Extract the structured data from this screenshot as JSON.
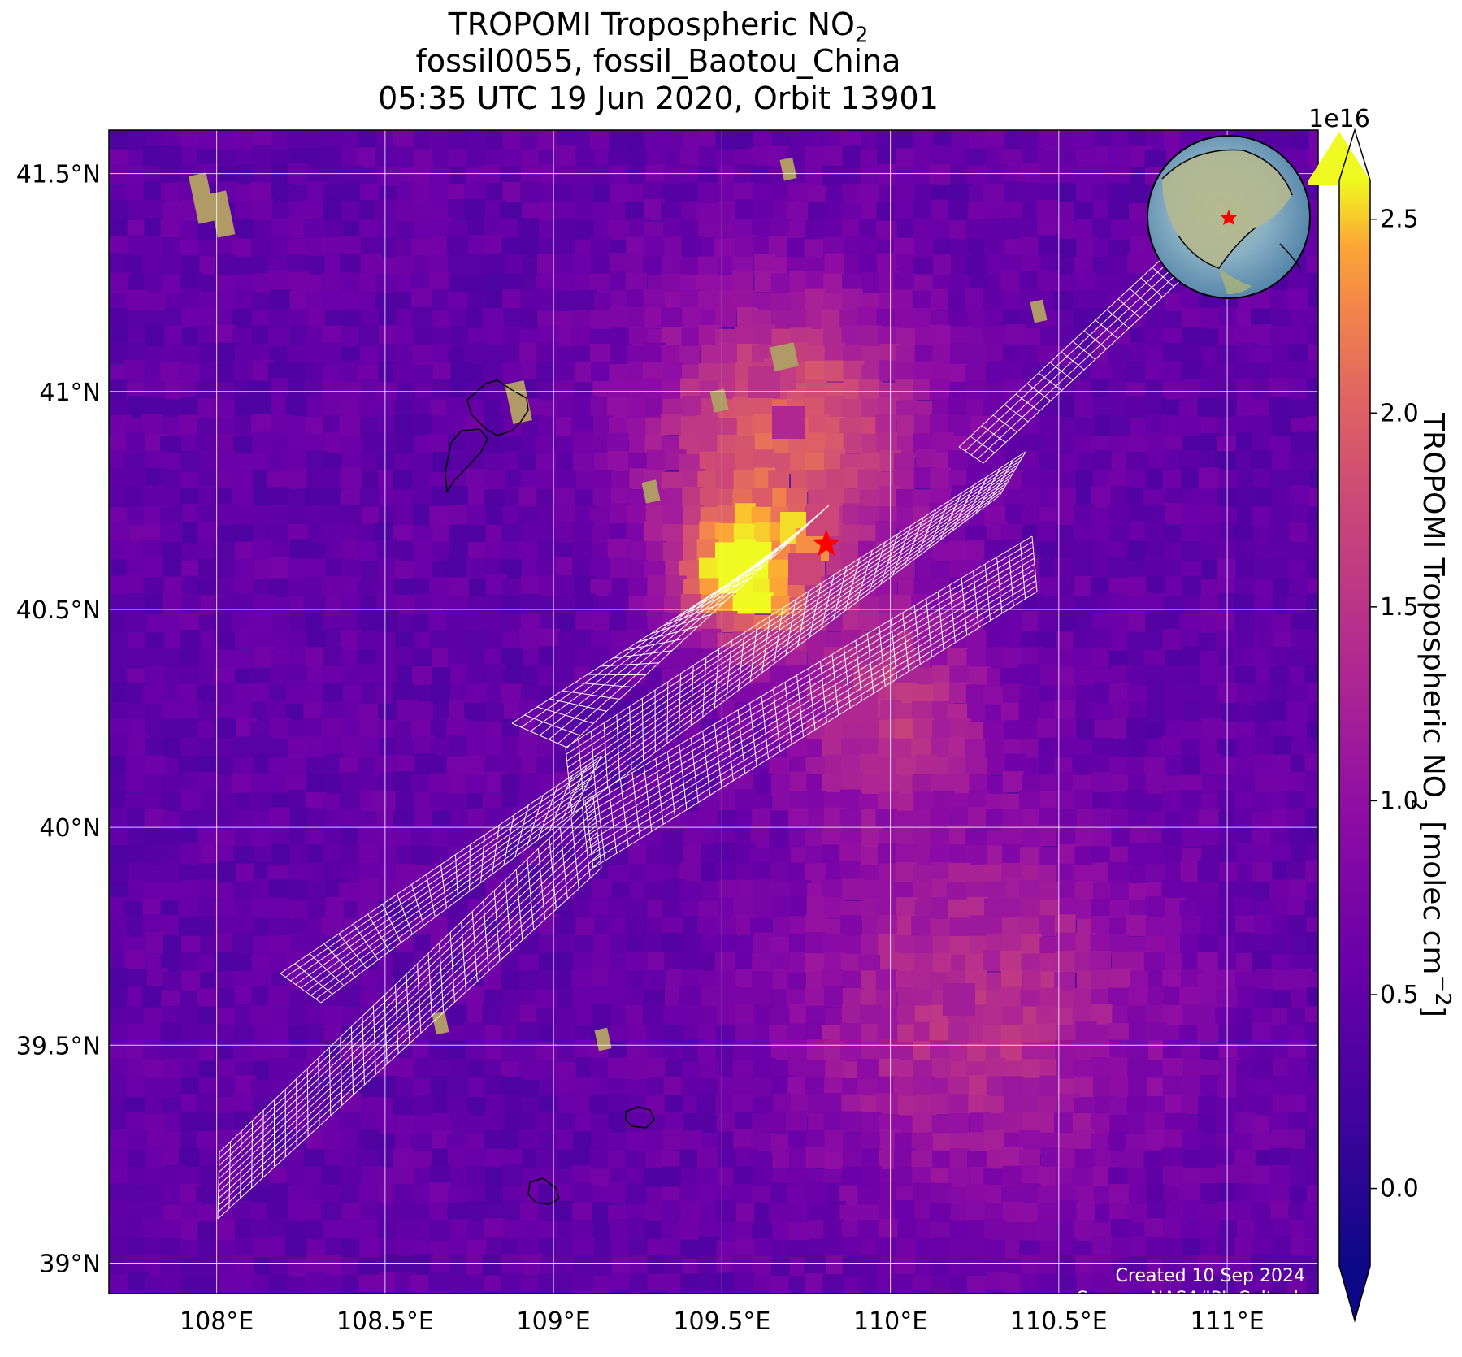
{
  "title": {
    "line1_main": "TROPOMI Tropospheric NO",
    "line1_sub": "2",
    "line2": "fossil0055, fossil_Baotou_China",
    "line3": "05:35 UTC 19 Jun 2020, Orbit 13901"
  },
  "map": {
    "lon_ticks": [
      "108°E",
      "108.5°E",
      "109°E",
      "109.5°E",
      "110°E",
      "110.5°E",
      "111°E"
    ],
    "lat_ticks": [
      "41.5°N",
      "41°N",
      "40.5°N",
      "40°N",
      "39.5°N",
      "39°N"
    ],
    "lon_values": [
      108.0,
      108.5,
      109.0,
      109.5,
      110.0,
      110.5,
      111.0
    ],
    "lat_values": [
      41.5,
      41.0,
      40.5,
      40.0,
      39.5,
      39.0
    ],
    "lon_range": [
      107.68,
      111.27
    ],
    "lat_range": [
      38.93,
      41.6
    ],
    "site_marker": {
      "lon": 109.81,
      "lat": 40.65,
      "color": "#ff0000",
      "icon": "star-icon"
    },
    "credit_line1": "Created 10 Sep 2024",
    "credit_line2": "Source: NASA/JPL-Caltech",
    "background_color": "#4a10a0",
    "grid_color": "#ffffff",
    "target_grid_color": "#ffffff"
  },
  "colorbar": {
    "exponent": "1e16",
    "tick_labels": [
      "0.0",
      "0.5",
      "1.0",
      "1.5",
      "2.0",
      "2.5"
    ],
    "tick_values": [
      0.0,
      0.5,
      1.0,
      1.5,
      2.0,
      2.5
    ],
    "range": [
      -0.2,
      2.6
    ],
    "colormap": "plasma",
    "extend": "both",
    "label_main": "TROPOMI Tropospheric NO",
    "label_sub": "2",
    "label_units": " [molec cm",
    "label_sup": "−2",
    "label_end": "]"
  },
  "inset_globe": {
    "icon": "globe-icon",
    "marker_color": "#ff0000"
  }
}
